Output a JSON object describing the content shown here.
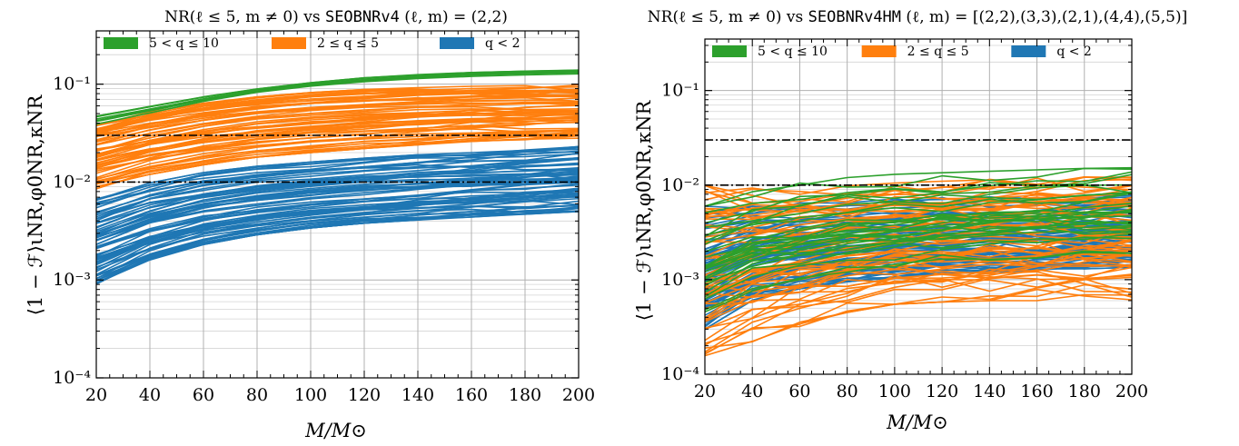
{
  "chart_data": [
    {
      "type": "line",
      "title": {
        "prefix": "NR(ℓ ≤ 5, m ≠ 0) vs ",
        "model": "SEOBNRv4",
        "suffix": " (ℓ, m) = (2,2)"
      },
      "xlabel": "M/M⊙",
      "ylabel": "⟨1 − ℱ⟩ιNR,φ0NR,κNR",
      "x_ticks": [
        "20",
        "40",
        "60",
        "80",
        "100",
        "120",
        "140",
        "160",
        "180",
        "200"
      ],
      "y_ticks": [
        "10⁻⁴",
        "10⁻³",
        "10⁻²",
        "10⁻¹"
      ],
      "xlim": [
        20,
        200
      ],
      "ylim": [
        0.0001,
        0.35
      ],
      "y_scale": "log",
      "grid": true,
      "legend": {
        "placement": "top",
        "entries": [
          {
            "label": "5 < q ≤ 10",
            "color": "#2ca02c"
          },
          {
            "label": "2 ≤ q ≤ 5",
            "color": "#ff7f0e"
          },
          {
            "label": "q < 2",
            "color": "#1f77b4"
          }
        ]
      },
      "reference_lines": [
        0.03,
        0.01
      ],
      "x": [
        20,
        40,
        60,
        80,
        100,
        120,
        140,
        160,
        180,
        200
      ],
      "bands": [
        {
          "label": "5 < q ≤ 10",
          "color": "#2ca02c",
          "n_curves": 8,
          "lower": [
            0.038,
            0.05,
            0.066,
            0.082,
            0.095,
            0.105,
            0.113,
            0.119,
            0.123,
            0.126
          ],
          "upper": [
            0.048,
            0.06,
            0.075,
            0.09,
            0.104,
            0.117,
            0.126,
            0.133,
            0.137,
            0.14
          ]
        },
        {
          "label": "2 ≤ q ≤ 5",
          "color": "#ff7f0e",
          "n_curves": 60,
          "lower": [
            0.0085,
            0.012,
            0.015,
            0.018,
            0.02,
            0.022,
            0.024,
            0.026,
            0.027,
            0.028
          ],
          "upper": [
            0.04,
            0.052,
            0.064,
            0.074,
            0.082,
            0.088,
            0.092,
            0.095,
            0.097,
            0.098
          ]
        },
        {
          "label": "q < 2",
          "color": "#1f77b4",
          "n_curves": 70,
          "lower": [
            0.0009,
            0.0016,
            0.0023,
            0.0029,
            0.0034,
            0.0038,
            0.0041,
            0.0044,
            0.0047,
            0.005
          ],
          "upper": [
            0.0068,
            0.0098,
            0.0125,
            0.0145,
            0.016,
            0.0175,
            0.019,
            0.02,
            0.0215,
            0.023
          ]
        }
      ]
    },
    {
      "type": "line",
      "title": {
        "prefix": "NR(ℓ ≤ 5, m ≠ 0) vs ",
        "model": "SEOBNRv4HM",
        "suffix": " (ℓ, m) = [(2,2),(3,3),(2,1),(4,4),(5,5)]"
      },
      "xlabel": "M/M⊙",
      "ylabel": "⟨1 − ℱ⟩ιNR,φ0NR,κNR",
      "x_ticks": [
        "20",
        "40",
        "60",
        "80",
        "100",
        "120",
        "140",
        "160",
        "180",
        "200"
      ],
      "y_ticks": [
        "10⁻⁴",
        "10⁻³",
        "10⁻²",
        "10⁻¹"
      ],
      "xlim": [
        20,
        200
      ],
      "ylim": [
        0.0001,
        0.35
      ],
      "y_scale": "log",
      "grid": true,
      "legend": {
        "placement": "top",
        "entries": [
          {
            "label": "5 < q ≤ 10",
            "color": "#2ca02c"
          },
          {
            "label": "2 ≤ q ≤ 5",
            "color": "#ff7f0e"
          },
          {
            "label": "q < 2",
            "color": "#1f77b4"
          }
        ]
      },
      "reference_lines": [
        0.03,
        0.01
      ],
      "x": [
        20,
        40,
        60,
        80,
        100,
        120,
        140,
        160,
        180,
        200
      ],
      "bands": [
        {
          "label": "5 < q ≤ 10",
          "color": "#2ca02c",
          "n_curves": 30,
          "lower": [
            0.0004,
            0.00075,
            0.0009,
            0.0011,
            0.0013,
            0.0015,
            0.0016,
            0.0017,
            0.0018,
            0.0019
          ],
          "upper": [
            0.006,
            0.0085,
            0.0105,
            0.012,
            0.013,
            0.0135,
            0.014,
            0.0145,
            0.015,
            0.0155
          ]
        },
        {
          "label": "2 ≤ q ≤ 5",
          "color": "#ff7f0e",
          "n_curves": 60,
          "lower": [
            0.00012,
            0.00022,
            0.00032,
            0.00045,
            0.00055,
            0.00058,
            0.0006,
            0.0006,
            0.0006,
            0.0006
          ],
          "upper": [
            0.01,
            0.0095,
            0.0095,
            0.0098,
            0.0105,
            0.011,
            0.0115,
            0.012,
            0.0122,
            0.0125
          ]
        },
        {
          "label": "q < 2",
          "color": "#1f77b4",
          "n_curves": 70,
          "lower": [
            0.0003,
            0.0006,
            0.0008,
            0.00095,
            0.00105,
            0.00115,
            0.0012,
            0.00125,
            0.0013,
            0.00135
          ],
          "upper": [
            0.006,
            0.0065,
            0.0068,
            0.007,
            0.0072,
            0.0074,
            0.0075,
            0.0076,
            0.0078,
            0.008
          ]
        }
      ]
    }
  ]
}
